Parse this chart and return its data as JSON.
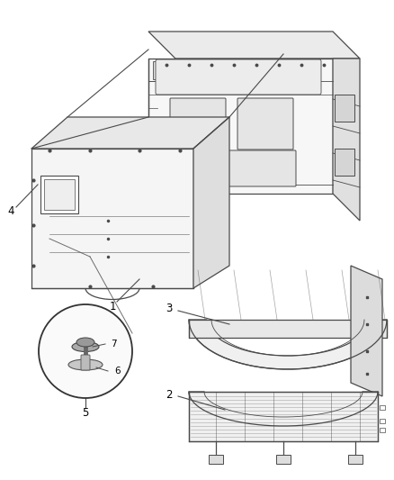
{
  "bg_color": "#ffffff",
  "fig_width": 4.38,
  "fig_height": 5.33,
  "dpi": 100,
  "line_color": "#4a4a4a",
  "text_color": "#000000",
  "label_fontsize": 8.5
}
